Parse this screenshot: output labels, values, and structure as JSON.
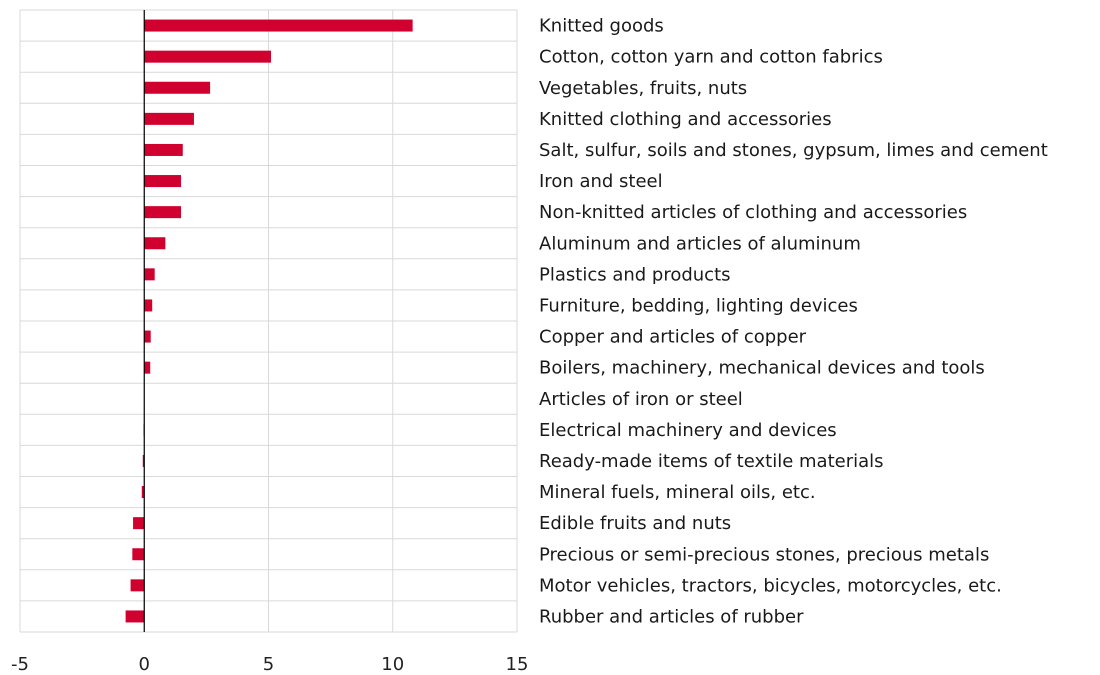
{
  "chart_data": {
    "type": "bar",
    "orientation": "horizontal",
    "categories": [
      "Knitted goods",
      "Cotton, cotton yarn and cotton fabrics",
      "Vegetables, fruits, nuts",
      "Knitted clothing and accessories",
      "Salt, sulfur, soils and stones, gypsum, limes and cement",
      "Iron and steel",
      "Non-knitted articles of clothing and accessories",
      "Aluminum and articles of aluminum",
      "Plastics and products",
      "Furniture, bedding, lighting devices",
      "Copper and articles of copper",
      "Boilers, machinery, mechanical devices and tools",
      "Articles of iron or steel",
      "Electrical machinery and devices",
      "Ready-made items of textile materials",
      "Mineral fuels, mineral oils, etc.",
      "Edible fruits and nuts",
      "Precious or semi-precious stones, precious metals",
      "Motor vehicles, tractors, bicycles, motorcycles, etc.",
      "Rubber and articles of rubber"
    ],
    "values": [
      10.8,
      5.1,
      2.65,
      2.0,
      1.55,
      1.48,
      1.48,
      0.85,
      0.42,
      0.32,
      0.26,
      0.24,
      0.0,
      -0.03,
      -0.06,
      -0.1,
      -0.45,
      -0.48,
      -0.55,
      -0.75
    ],
    "xlim": [
      -5,
      15
    ],
    "xticks": [
      -5,
      0,
      5,
      10,
      15
    ],
    "tick_labels": [
      "-5",
      "0",
      "5",
      "10",
      "15"
    ],
    "grid": true,
    "bar_color": "#d0002f",
    "title": "",
    "xlabel": "",
    "ylabel": ""
  }
}
